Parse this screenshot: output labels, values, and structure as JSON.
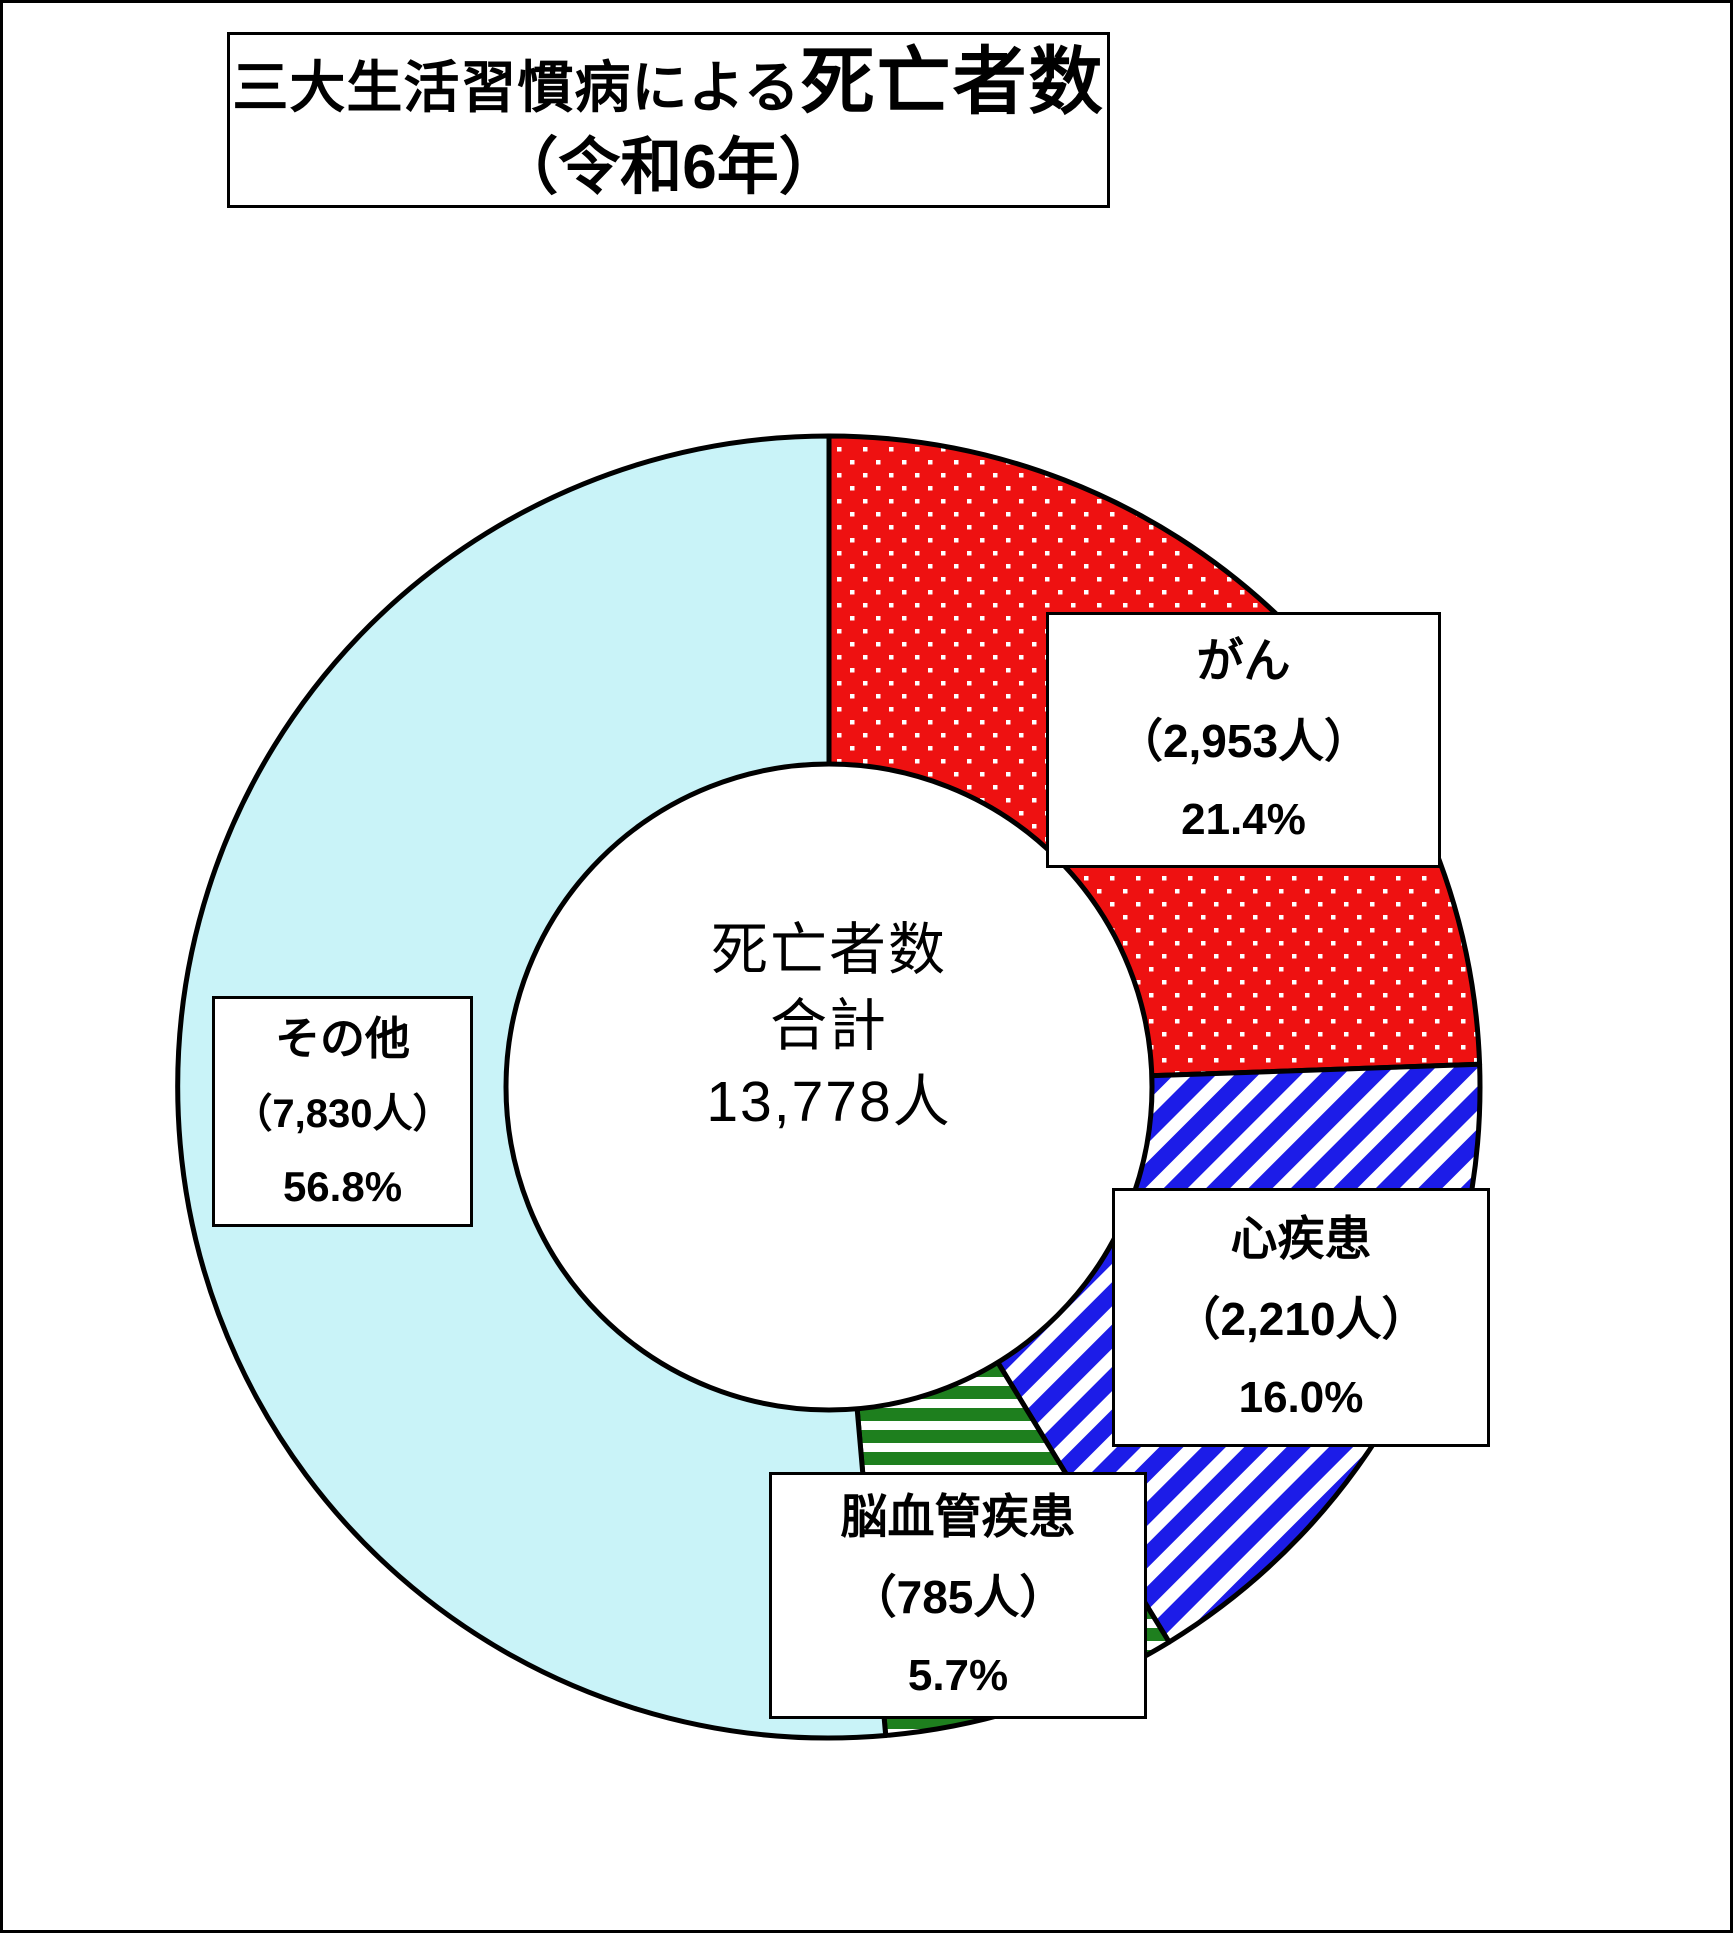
{
  "title": {
    "main_prefix": "三大生活習慣病による",
    "main_emphasis": "死亡者数",
    "subtitle": "（令和6年）"
  },
  "center": {
    "line1": "死亡者数",
    "line2": "合計",
    "line3": "13,778人"
  },
  "chart_data": {
    "type": "pie",
    "donut": true,
    "title": "三大生活習慣病による死亡者数（令和6年）",
    "center_text": "死亡者数 合計 13,778人",
    "total_persons": 13778,
    "start_angle_deg": 0,
    "direction": "clockwise",
    "legend_position": "none",
    "categories": [
      "がん",
      "心疾患",
      "脳血管疾患",
      "その他"
    ],
    "values": [
      2953,
      2210,
      785,
      7830
    ],
    "percents": [
      21.4,
      16.0,
      5.7,
      56.8
    ],
    "outline_color": "#000000",
    "slices": [
      {
        "name": "がん",
        "persons": 2953,
        "count_label": "（2,953人）",
        "percent": 21.4,
        "percent_label": "21.4%",
        "fill": "dots",
        "color": "#ee1111",
        "pattern_desc": "red with small white dots",
        "drawn_deg": 88
      },
      {
        "name": "心疾患",
        "persons": 2210,
        "count_label": "（2,210人）",
        "percent": 16.0,
        "percent_label": "16.0%",
        "fill": "diag",
        "color": "#1c1ce8",
        "pattern_desc": "blue with white diagonal stripes",
        "drawn_deg": 60.5
      },
      {
        "name": "脳血管疾患",
        "persons": 785,
        "count_label": "（785人）",
        "percent": 5.7,
        "percent_label": "5.7%",
        "fill": "hstripe",
        "color": "#1e7f1e",
        "pattern_desc": "green horizontal stripes on white",
        "drawn_deg": 26.5
      },
      {
        "name": "その他",
        "persons": 7830,
        "count_label": "（7,830人）",
        "percent": 56.8,
        "percent_label": "56.8%",
        "fill": "solid",
        "color": "#c9f3f8",
        "pattern_desc": "solid light cyan",
        "drawn_deg": 185
      }
    ]
  }
}
